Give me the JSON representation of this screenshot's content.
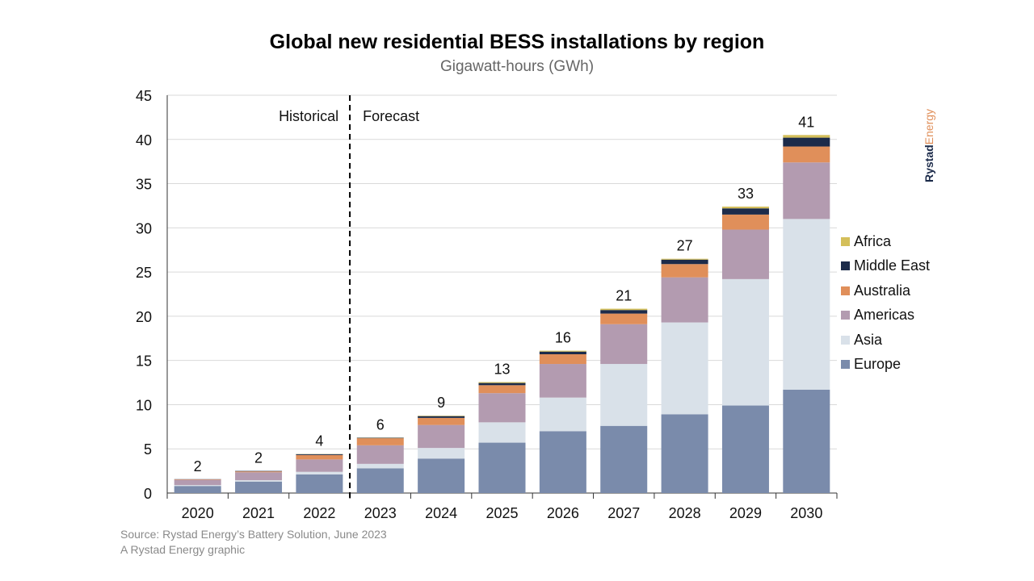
{
  "chart_data": {
    "type": "bar",
    "stacked": true,
    "title": "Global new residential BESS installations by region",
    "subtitle": "Gigawatt-hours (GWh)",
    "categories": [
      "2020",
      "2021",
      "2022",
      "2023",
      "2024",
      "2025",
      "2026",
      "2027",
      "2028",
      "2029",
      "2030"
    ],
    "ylim": [
      0,
      45
    ],
    "yticks": [
      0,
      5,
      10,
      15,
      20,
      25,
      30,
      35,
      40,
      45
    ],
    "grid": true,
    "legend_position": "right",
    "annotations": {
      "historical": "Historical",
      "forecast": "Forecast",
      "divider_between": [
        "2022",
        "2023"
      ]
    },
    "total_labels": [
      "2",
      "2",
      "4",
      "6",
      "9",
      "13",
      "16",
      "21",
      "27",
      "33",
      "41"
    ],
    "series": [
      {
        "name": "Europe",
        "color": "#7a8bab",
        "values": [
          0.8,
          1.3,
          2.1,
          2.8,
          3.9,
          5.7,
          7.0,
          7.6,
          8.9,
          9.9,
          11.7
        ]
      },
      {
        "name": "Asia",
        "color": "#d9e1e9",
        "values": [
          0.1,
          0.15,
          0.3,
          0.5,
          1.2,
          2.3,
          3.8,
          7.0,
          10.4,
          14.3,
          19.3
        ]
      },
      {
        "name": "Americas",
        "color": "#b39bb0",
        "values": [
          0.6,
          0.9,
          1.4,
          2.1,
          2.6,
          3.3,
          3.8,
          4.5,
          5.1,
          5.6,
          6.4
        ]
      },
      {
        "name": "Australia",
        "color": "#e08f5a",
        "values": [
          0.05,
          0.1,
          0.5,
          0.8,
          0.8,
          0.9,
          1.1,
          1.2,
          1.5,
          1.7,
          1.8
        ]
      },
      {
        "name": "Middle East",
        "color": "#1c2b4a",
        "values": [
          0.02,
          0.05,
          0.1,
          0.05,
          0.2,
          0.25,
          0.3,
          0.4,
          0.5,
          0.7,
          1.0
        ]
      },
      {
        "name": "Africa",
        "color": "#d4bf5a",
        "values": [
          0,
          0,
          0.02,
          0.02,
          0.05,
          0.1,
          0.1,
          0.15,
          0.1,
          0.2,
          0.3
        ]
      }
    ]
  },
  "footer": {
    "source": "Source: Rystad Energy’s Battery Solution, June 2023",
    "credit": "A Rystad Energy graphic"
  },
  "logo": {
    "part1": "Rystad",
    "part2": "Energy",
    "color1": "#1c2b4a",
    "color2": "#e08f5a"
  }
}
